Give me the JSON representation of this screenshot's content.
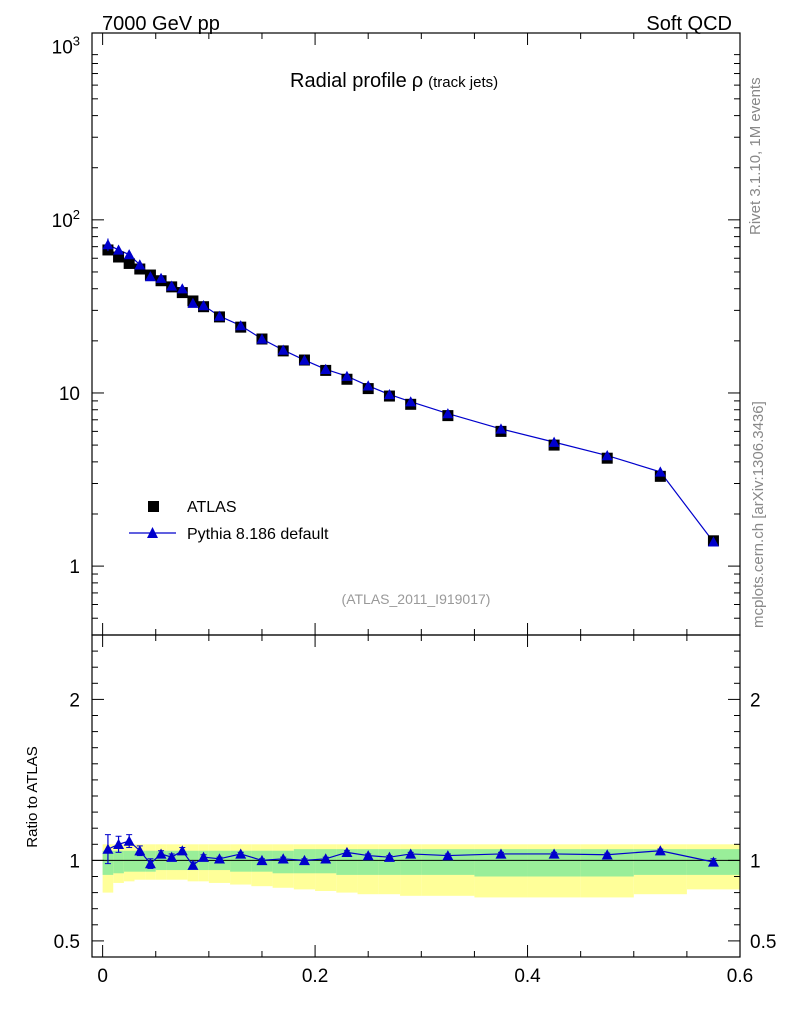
{
  "header": {
    "left": "7000 GeV pp",
    "right": "Soft QCD"
  },
  "side_labels": {
    "rivet": "Rivet 3.1.10,  1M events",
    "mcplots": "mcplots.cern.ch [arXiv:1306.3436]"
  },
  "plot_title": {
    "main": "Radial profile",
    "symbol": "ρ",
    "suffix": "(track jets)"
  },
  "analysis_id": "(ATLAS_2011_I919017)",
  "colors": {
    "data": "#000000",
    "mc": "#0000cc",
    "band_inner": "#99ee99",
    "band_outer": "#ffff99"
  },
  "chart_data": [
    {
      "type": "scatter",
      "xlim": [
        -0.01,
        0.6
      ],
      "ylim": [
        0.4,
        1200
      ],
      "yscale": "log",
      "yticks": [
        1,
        10,
        100,
        1000
      ],
      "ytick_labels": [
        "1",
        "10",
        "10^2",
        "10^3"
      ],
      "legend_position": "lower-left",
      "series": [
        {
          "name": "ATLAS",
          "marker": "square",
          "x": [
            0.005,
            0.015,
            0.025,
            0.035,
            0.045,
            0.055,
            0.065,
            0.075,
            0.085,
            0.095,
            0.11,
            0.13,
            0.15,
            0.17,
            0.19,
            0.21,
            0.23,
            0.25,
            0.27,
            0.29,
            0.325,
            0.375,
            0.425,
            0.475,
            0.525,
            0.575
          ],
          "y": [
            67,
            61,
            56,
            52,
            48,
            44.5,
            41,
            38,
            34,
            31.5,
            27.5,
            24,
            20.5,
            17.5,
            15.5,
            13.5,
            12,
            10.6,
            9.6,
            8.6,
            7.4,
            6.0,
            5.0,
            4.2,
            3.3,
            1.4
          ]
        },
        {
          "name": "Pythia 8.186 default",
          "marker": "triangle",
          "x": [
            0.005,
            0.015,
            0.025,
            0.035,
            0.045,
            0.055,
            0.065,
            0.075,
            0.085,
            0.095,
            0.11,
            0.13,
            0.15,
            0.17,
            0.19,
            0.21,
            0.23,
            0.25,
            0.27,
            0.29,
            0.325,
            0.375,
            0.425,
            0.475,
            0.525,
            0.575
          ],
          "y": [
            72,
            67,
            63,
            55,
            47,
            46,
            41.5,
            40,
            33,
            32,
            27.8,
            24.5,
            20.5,
            17.7,
            15.5,
            13.7,
            12.5,
            11,
            9.8,
            8.9,
            7.6,
            6.2,
            5.2,
            4.35,
            3.5,
            1.38
          ],
          "yerr": [
            6,
            3,
            2,
            1,
            1,
            0.8,
            0.6,
            0.6,
            0.5,
            0.4,
            0.3,
            0.3,
            0.2,
            0.2,
            0.15,
            0.1,
            0.1,
            0.1,
            0.08,
            0.08,
            0.06,
            0.05,
            0.05,
            0.04,
            0.04,
            0.03
          ]
        }
      ]
    },
    {
      "type": "scatter",
      "ylabel": "Ratio to ATLAS",
      "xlim": [
        -0.01,
        0.6
      ],
      "ylim": [
        0.4,
        2.4
      ],
      "xticks": [
        0,
        0.2,
        0.4,
        0.6
      ],
      "xtick_labels": [
        "0",
        "0.2",
        "0.4",
        "0.6"
      ],
      "yticks": [
        0.5,
        1,
        2
      ],
      "ytick_labels": [
        "0.5",
        "1",
        "2"
      ],
      "bands": {
        "x_edges": [
          0,
          0.01,
          0.02,
          0.03,
          0.04,
          0.05,
          0.06,
          0.07,
          0.08,
          0.09,
          0.1,
          0.12,
          0.14,
          0.16,
          0.18,
          0.2,
          0.22,
          0.24,
          0.26,
          0.28,
          0.3,
          0.35,
          0.4,
          0.45,
          0.5,
          0.55,
          0.6
        ],
        "inner_low": [
          0.91,
          0.92,
          0.93,
          0.93,
          0.93,
          0.94,
          0.94,
          0.94,
          0.94,
          0.94,
          0.94,
          0.93,
          0.93,
          0.92,
          0.92,
          0.92,
          0.91,
          0.91,
          0.91,
          0.91,
          0.91,
          0.9,
          0.9,
          0.9,
          0.91,
          0.91
        ],
        "inner_high": [
          1.06,
          1.06,
          1.06,
          1.06,
          1.06,
          1.06,
          1.06,
          1.06,
          1.06,
          1.06,
          1.06,
          1.06,
          1.06,
          1.06,
          1.07,
          1.07,
          1.07,
          1.07,
          1.07,
          1.07,
          1.07,
          1.07,
          1.07,
          1.07,
          1.07,
          1.07
        ],
        "outer_low": [
          0.8,
          0.86,
          0.87,
          0.88,
          0.88,
          0.88,
          0.88,
          0.88,
          0.87,
          0.87,
          0.86,
          0.85,
          0.84,
          0.83,
          0.82,
          0.81,
          0.8,
          0.79,
          0.79,
          0.78,
          0.78,
          0.77,
          0.77,
          0.77,
          0.79,
          0.82
        ],
        "outer_high": [
          1.1,
          1.1,
          1.1,
          1.1,
          1.1,
          1.1,
          1.1,
          1.1,
          1.1,
          1.1,
          1.1,
          1.1,
          1.1,
          1.1,
          1.1,
          1.1,
          1.1,
          1.1,
          1.1,
          1.1,
          1.1,
          1.1,
          1.1,
          1.1,
          1.1,
          1.1
        ]
      },
      "series": [
        {
          "name": "Pythia 8.186 default",
          "marker": "triangle",
          "x": [
            0.005,
            0.015,
            0.025,
            0.035,
            0.045,
            0.055,
            0.065,
            0.075,
            0.085,
            0.095,
            0.11,
            0.13,
            0.15,
            0.17,
            0.19,
            0.21,
            0.23,
            0.25,
            0.27,
            0.29,
            0.325,
            0.375,
            0.425,
            0.475,
            0.525,
            0.575
          ],
          "y": [
            1.07,
            1.1,
            1.12,
            1.06,
            0.98,
            1.04,
            1.02,
            1.06,
            0.97,
            1.02,
            1.01,
            1.04,
            1.0,
            1.01,
            1.0,
            1.01,
            1.05,
            1.03,
            1.02,
            1.04,
            1.03,
            1.04,
            1.04,
            1.035,
            1.06,
            0.99
          ],
          "yerr": [
            0.09,
            0.05,
            0.04,
            0.03,
            0.03,
            0.02,
            0.02,
            0.02,
            0.02,
            0.015,
            0.01,
            0.01,
            0.01,
            0.01,
            0.01,
            0.01,
            0.01,
            0.01,
            0.01,
            0.01,
            0.01,
            0.01,
            0.01,
            0.01,
            0.01,
            0.02
          ]
        }
      ]
    }
  ]
}
